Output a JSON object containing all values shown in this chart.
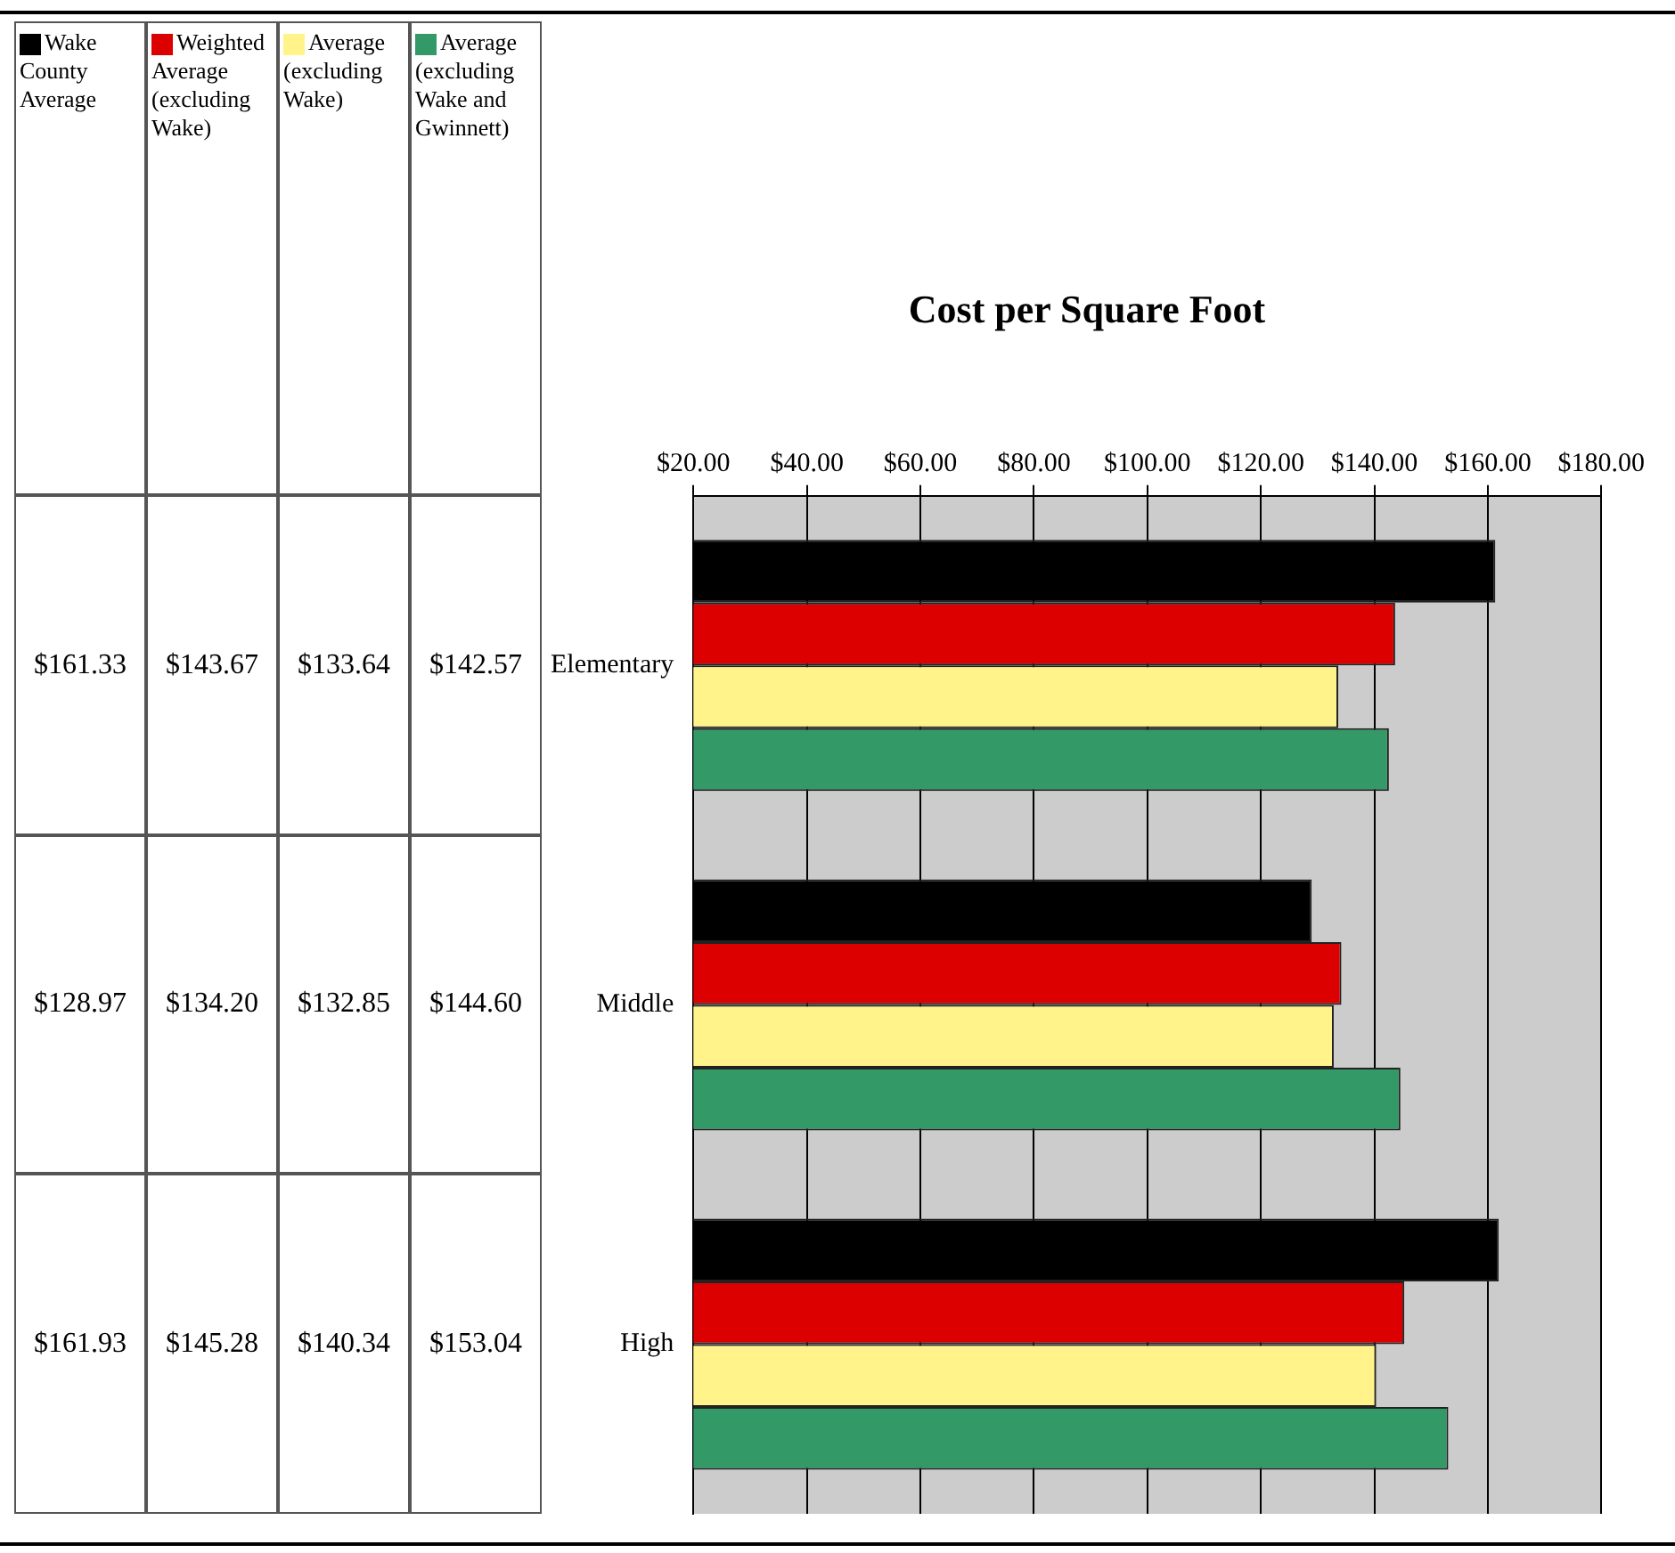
{
  "chart_data": {
    "type": "bar",
    "orientation": "horizontal",
    "title": "Cost per Square Foot",
    "categories": [
      "Elementary",
      "Middle",
      "High"
    ],
    "series": [
      {
        "name": "Wake County Average",
        "color": "#000000",
        "values": [
          161.33,
          128.97,
          161.93
        ],
        "value_labels": [
          "$161.33",
          "$128.97",
          "$161.93"
        ]
      },
      {
        "name": "Weighted Average (excluding Wake)",
        "color": "#dd0000",
        "values": [
          143.67,
          134.2,
          145.28
        ],
        "value_labels": [
          "$143.67",
          "$134.20",
          "$145.28"
        ]
      },
      {
        "name": "Average (excluding Wake)",
        "color": "#fff38a",
        "values": [
          133.64,
          132.85,
          140.34
        ],
        "value_labels": [
          "$133.64",
          "$132.85",
          "$140.34"
        ]
      },
      {
        "name": "Average (excluding Wake and Gwinnett)",
        "color": "#339966",
        "values": [
          142.57,
          144.6,
          153.04
        ],
        "value_labels": [
          "$142.57",
          "$144.60",
          "$153.04"
        ]
      }
    ],
    "xlim": [
      20,
      180
    ],
    "xticks": [
      {
        "value": 20,
        "label": "$20.00"
      },
      {
        "value": 40,
        "label": "$40.00"
      },
      {
        "value": 60,
        "label": "$60.00"
      },
      {
        "value": 80,
        "label": "$80.00"
      },
      {
        "value": 100,
        "label": "$100.00"
      },
      {
        "value": 120,
        "label": "$120.00"
      },
      {
        "value": 140,
        "label": "$140.00"
      },
      {
        "value": 160,
        "label": "$160.00"
      },
      {
        "value": 180,
        "label": "$180.00"
      }
    ],
    "grid": "x",
    "legend": "left"
  }
}
